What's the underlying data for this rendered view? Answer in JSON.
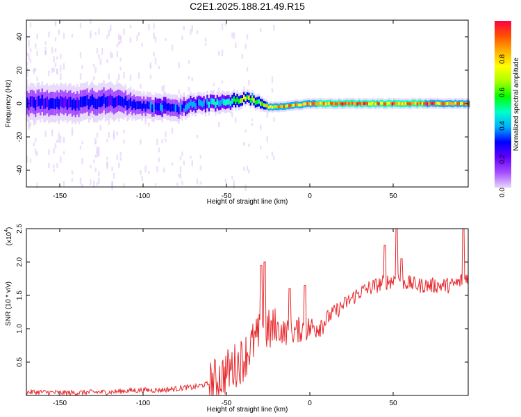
{
  "title": "C2E1.2025.188.21.49.R15",
  "colors": {
    "snr_line": "#e8262a",
    "axis": "#000000",
    "background": "#ffffff"
  },
  "chart_data": [
    {
      "type": "heatmap",
      "xlabel": "Height of straight line (km)",
      "ylabel": "Frequency (Hz)",
      "xlim": [
        -170,
        95
      ],
      "ylim": [
        -50,
        50
      ],
      "xticks": [
        "-150",
        "-100",
        "-50",
        "0",
        "50"
      ],
      "xtick_values": [
        -150,
        -100,
        -50,
        0,
        50
      ],
      "yticks": [
        "-40",
        "-20",
        "0",
        "20",
        "40"
      ],
      "ytick_values": [
        -40,
        -20,
        0,
        20,
        40
      ],
      "colorbar": {
        "label": "Normalized spectral amplitude",
        "range": [
          0,
          1
        ],
        "ticks": [
          "0.0",
          "0.2",
          "0.4",
          "0.6",
          "0.8"
        ],
        "tick_values": [
          0.0,
          0.2,
          0.4,
          0.6,
          0.8
        ],
        "colormap": [
          "#e6d6fa",
          "#a64dff",
          "#6600ff",
          "#0000ff",
          "#00b0ff",
          "#00ffc8",
          "#00ff00",
          "#aaff00",
          "#ffff00",
          "#ffb000",
          "#ff5000",
          "#ff0044"
        ]
      },
      "ridge": {
        "height_km": [
          -170,
          -160,
          -150,
          -140,
          -130,
          -120,
          -110,
          -100,
          -90,
          -80,
          -70,
          -60,
          -50,
          -40,
          -35,
          -30,
          -25,
          -20,
          -10,
          0,
          20,
          40,
          60,
          80,
          95
        ],
        "frequency_hz": [
          0,
          1,
          0,
          0,
          1,
          2,
          0,
          -2,
          -2,
          -3,
          0,
          0,
          1,
          3,
          2,
          0,
          -2,
          -2,
          -1,
          0,
          0,
          0,
          0,
          0,
          0
        ],
        "amplitude": [
          0.28,
          0.3,
          0.3,
          0.3,
          0.32,
          0.32,
          0.3,
          0.35,
          0.38,
          0.35,
          0.4,
          0.45,
          0.5,
          0.7,
          0.75,
          0.6,
          0.82,
          0.85,
          0.88,
          0.92,
          0.95,
          0.95,
          0.93,
          0.92,
          0.9
        ],
        "spread_hz": [
          7,
          7,
          7,
          7,
          7,
          7,
          6,
          5,
          5,
          5,
          4,
          4,
          4,
          3,
          3,
          3,
          2,
          2,
          2,
          2,
          2,
          2,
          2,
          2,
          2
        ]
      }
    },
    {
      "type": "line",
      "xlabel": "Height of straight line (km)",
      "ylabel": "SNR (10 * v/v)",
      "y_multiplier": "(x10",
      "y_multiplier_exponent": "4",
      "y_multiplier_close": ")",
      "xlim": [
        -170,
        95
      ],
      "ylim": [
        0,
        2.5
      ],
      "xticks": [
        "-150",
        "-100",
        "-50",
        "0",
        "50"
      ],
      "xtick_values": [
        -150,
        -100,
        -50,
        0,
        50
      ],
      "yticks": [
        "0.5",
        "1.0",
        "1.5",
        "2.0",
        "2.5"
      ],
      "ytick_values": [
        0.5,
        1.0,
        1.5,
        2.0,
        2.5
      ],
      "series": [
        {
          "x": [
            -170,
            -160,
            -150,
            -140,
            -130,
            -120,
            -110,
            -100,
            -90,
            -80,
            -75,
            -70,
            -65,
            -60,
            -55,
            -50,
            -45,
            -40,
            -35,
            -30,
            -28,
            -25,
            -20,
            -15,
            -10,
            -5,
            0,
            5,
            10,
            15,
            20,
            25,
            30,
            35,
            40,
            45,
            50,
            52,
            55,
            60,
            65,
            70,
            75,
            80,
            85,
            90,
            92,
            95
          ],
          "y": [
            0.05,
            0.05,
            0.04,
            0.04,
            0.05,
            0.05,
            0.07,
            0.08,
            0.08,
            0.1,
            0.12,
            0.12,
            0.15,
            0.18,
            0.25,
            0.35,
            0.45,
            0.55,
            0.75,
            0.9,
            1.1,
            0.95,
            1.0,
            0.95,
            0.95,
            1.0,
            1.0,
            1.05,
            1.15,
            1.25,
            1.35,
            1.45,
            1.55,
            1.6,
            1.65,
            1.7,
            1.72,
            1.8,
            1.7,
            1.68,
            1.65,
            1.65,
            1.65,
            1.65,
            1.65,
            1.7,
            1.75,
            1.8
          ],
          "spikes": [
            {
              "x": -29,
              "y": 1.95
            },
            {
              "x": -27,
              "y": 2.0
            },
            {
              "x": -12,
              "y": 1.6
            },
            {
              "x": -3,
              "y": 1.65
            },
            {
              "x": 45,
              "y": 2.25
            },
            {
              "x": 52,
              "y": 2.5
            },
            {
              "x": 55,
              "y": 2.05
            },
            {
              "x": 92,
              "y": 2.5
            }
          ]
        }
      ]
    }
  ]
}
